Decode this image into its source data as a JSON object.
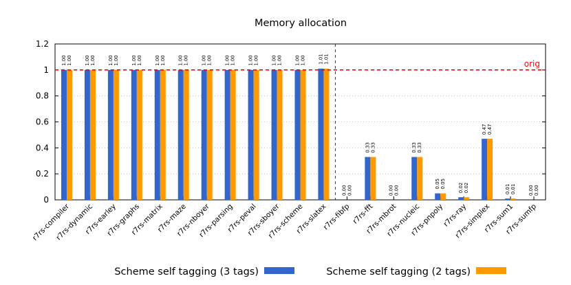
{
  "chart_data": {
    "type": "bar",
    "title": "Memory allocation",
    "xlabel": "",
    "ylabel": "",
    "ylim": [
      0,
      1.2
    ],
    "yticks": [
      "0",
      "0.2",
      "0.4",
      "0.6",
      "0.8",
      "1",
      "1.2"
    ],
    "grid": true,
    "legend_position": "bottom",
    "categories": [
      "r7rs-compiler",
      "r7rs-dynamic",
      "r7rs-earley",
      "r7rs-graphs",
      "r7rs-matrix",
      "r7rs-maze",
      "r7rs-nboyer",
      "r7rs-parsing",
      "r7rs-peval",
      "r7rs-sboyer",
      "r7rs-scheme",
      "r7rs-slatex",
      "r7rs-fibfp",
      "r7rs-fft",
      "r7rs-mbrot",
      "r7rs-nucleic",
      "r7rs-pnpoly",
      "r7rs-ray",
      "r7rs-simplex",
      "r7rs-sum1",
      "r7rs-sumfp"
    ],
    "series": [
      {
        "name": "Scheme self tagging (3 tags)",
        "color": "#3366cc",
        "values": [
          1.0,
          1.0,
          1.0,
          1.0,
          1.0,
          1.0,
          1.0,
          1.0,
          1.0,
          1.0,
          1.0,
          1.01,
          0.0,
          0.33,
          0.0,
          0.33,
          0.05,
          0.02,
          0.47,
          0.01,
          0.0
        ],
        "labels": [
          "1.00",
          "1.00",
          "1.00",
          "1.00",
          "1.00",
          "1.00",
          "1.00",
          "1.00",
          "1.00",
          "1.00",
          "1.00",
          "1.01",
          "0.00",
          "0.33",
          "0.00",
          "0.33",
          "0.05",
          "0.02",
          "0.47",
          "0.01",
          "0.00"
        ]
      },
      {
        "name": "Scheme self tagging (2 tags)",
        "color": "#ff9900",
        "values": [
          1.0,
          1.0,
          1.0,
          1.0,
          1.0,
          1.0,
          1.0,
          1.0,
          1.0,
          1.0,
          1.0,
          1.01,
          0.0,
          0.33,
          0.0,
          0.33,
          0.05,
          0.02,
          0.47,
          0.01,
          0.0
        ],
        "labels": [
          "1.00",
          "1.00",
          "1.00",
          "1.00",
          "1.00",
          "1.00",
          "1.00",
          "1.00",
          "1.00",
          "1.00",
          "1.00",
          "1.01",
          "0.00",
          "0.33",
          "0.00",
          "0.33",
          "0.05",
          "0.02",
          "0.47",
          "0.01",
          "0.00"
        ]
      }
    ],
    "reference_line": {
      "value": 1,
      "label": "orig",
      "color": "#ff0000"
    },
    "separator_after_category": "r7rs-slatex"
  }
}
